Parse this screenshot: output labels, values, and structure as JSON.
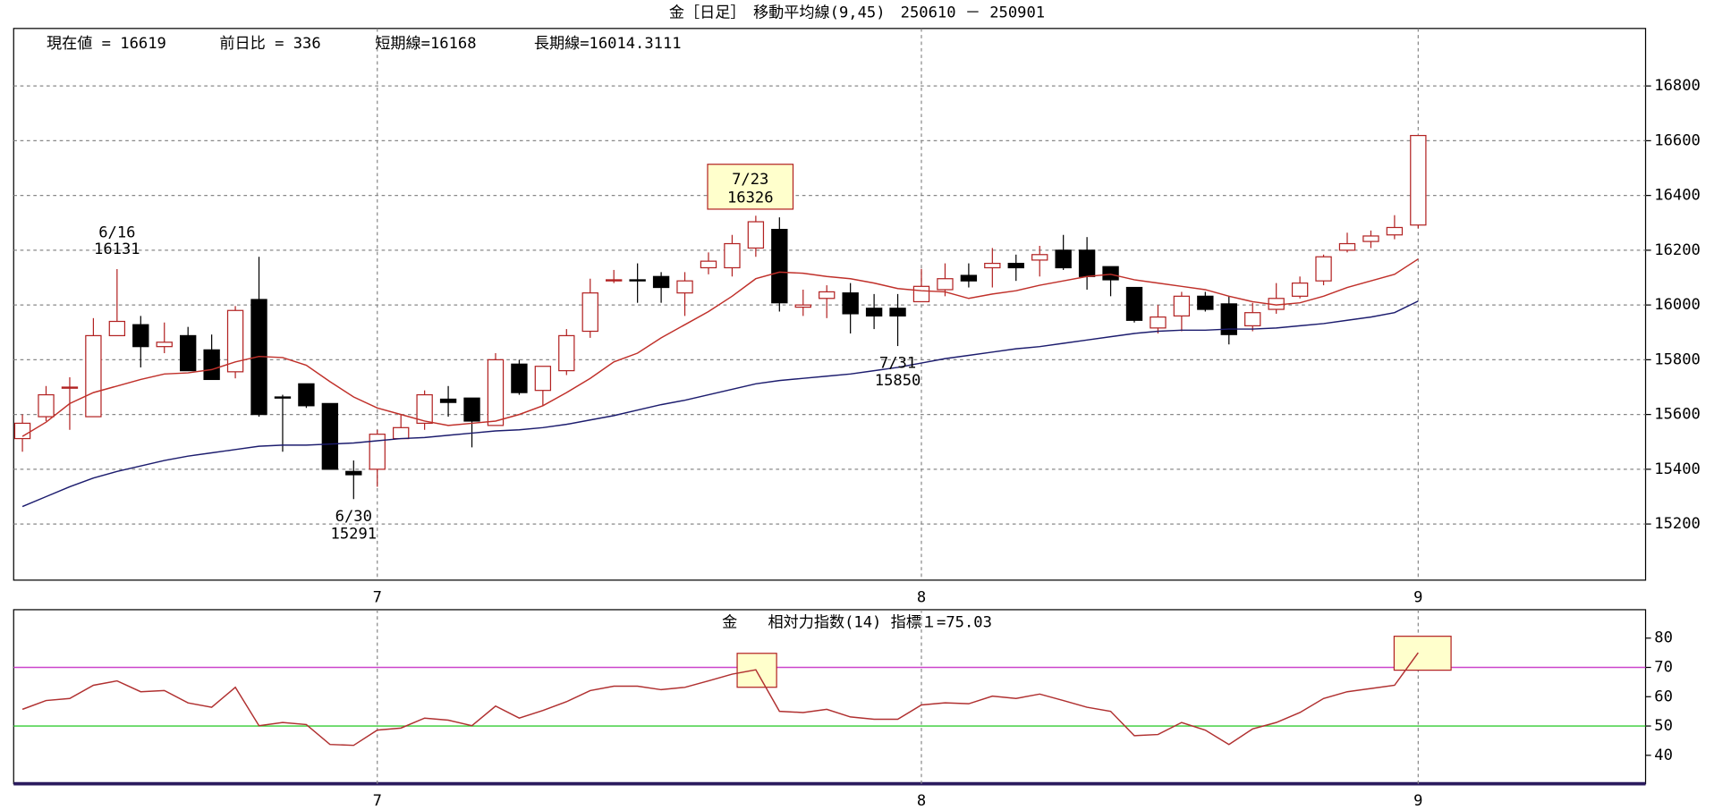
{
  "chart_data": [
    {
      "type": "candlestick",
      "title": "金［日足］　移動平均線(9,45)　250610 － 250901",
      "info": [
        "現在値 = 16619",
        "前日比 = 336",
        "短期線=16168",
        "長期線=16014.3111"
      ],
      "categories": [
        null,
        null,
        null,
        null,
        null,
        null,
        null,
        null,
        null,
        null,
        null,
        null,
        null,
        null,
        null,
        "7",
        null,
        null,
        null,
        null,
        null,
        null,
        null,
        null,
        null,
        null,
        null,
        null,
        null,
        null,
        null,
        null,
        null,
        null,
        null,
        null,
        null,
        null,
        "8",
        null,
        null,
        null,
        null,
        null,
        null,
        null,
        null,
        null,
        null,
        null,
        null,
        null,
        null,
        null,
        null,
        null,
        null,
        null,
        null,
        "9"
      ],
      "open": [
        15512,
        15592,
        15696,
        15592,
        15888,
        15928,
        15848,
        15888,
        15836,
        15756,
        16020,
        15664,
        15712,
        15640,
        15392,
        15400,
        15512,
        15568,
        15656,
        15660,
        15560,
        15784,
        15688,
        15760,
        15904,
        16088,
        16092,
        16104,
        16044,
        16136,
        16136,
        16208,
        16276,
        15992,
        16024,
        16044,
        15988,
        15988,
        16012,
        16056,
        16108,
        16136,
        16152,
        16164,
        16200,
        16200,
        16140,
        16064,
        15916,
        15960,
        16032,
        16004,
        15924,
        15984,
        16032,
        16088,
        16200,
        16232,
        16256,
        16292
      ],
      "high": [
        15600,
        15704,
        15736,
        15952,
        16131,
        15960,
        15936,
        15920,
        15892,
        15996,
        16176,
        15672,
        15712,
        15640,
        15432,
        15544,
        15600,
        15688,
        15704,
        15660,
        15824,
        15800,
        15776,
        15912,
        16096,
        16128,
        16152,
        16120,
        16120,
        16192,
        16256,
        16326,
        16320,
        16056,
        16072,
        16080,
        16040,
        16040,
        16132,
        16152,
        16152,
        16208,
        16184,
        16216,
        16256,
        16248,
        16140,
        16064,
        16000,
        16048,
        16048,
        16032,
        16008,
        16080,
        16104,
        16184,
        16264,
        16272,
        16328,
        16619
      ],
      "low": [
        15464,
        15576,
        15544,
        15592,
        15888,
        15772,
        15824,
        15760,
        15728,
        15732,
        15592,
        15464,
        15624,
        15400,
        15291,
        15336,
        15512,
        15544,
        15592,
        15480,
        15560,
        15672,
        15632,
        15744,
        15880,
        16080,
        16008,
        16008,
        15960,
        16112,
        16104,
        16176,
        15976,
        15960,
        15952,
        15896,
        15912,
        15850,
        16012,
        16032,
        16064,
        16064,
        16088,
        16104,
        16128,
        16056,
        16032,
        15936,
        15896,
        15904,
        15976,
        15856,
        15904,
        15968,
        16024,
        16072,
        16192,
        16208,
        16240,
        16280
      ],
      "close": [
        15568,
        15672,
        15700,
        15888,
        15940,
        15848,
        15864,
        15760,
        15728,
        15980,
        15600,
        15660,
        15632,
        15400,
        15380,
        15528,
        15552,
        15672,
        15644,
        15576,
        15800,
        15680,
        15776,
        15888,
        16044,
        16092,
        16088,
        16064,
        16088,
        16160,
        16224,
        16304,
        16008,
        16000,
        16048,
        15968,
        15960,
        15960,
        16068,
        16096,
        16088,
        16152,
        16136,
        16184,
        16136,
        16104,
        16092,
        15944,
        15956,
        16032,
        15984,
        15892,
        15972,
        16024,
        16080,
        16176,
        16224,
        16252,
        16283,
        16619
      ],
      "up_color": "#b22222",
      "down_color": "#000000",
      "lines": [
        {
          "color": "#c0302a",
          "values": [
            15520,
            15572,
            15640,
            15680,
            15704,
            15728,
            15748,
            15752,
            15764,
            15792,
            15812,
            15808,
            15780,
            15720,
            15664,
            15624,
            15600,
            15576,
            15560,
            15568,
            15576,
            15600,
            15632,
            15680,
            15732,
            15792,
            15824,
            15880,
            15928,
            15976,
            16032,
            16096,
            16120,
            16116,
            16104,
            16096,
            16080,
            16060,
            16052,
            16048,
            16024,
            16040,
            16052,
            16072,
            16088,
            16104,
            16112,
            16092,
            16080,
            16068,
            16056,
            16032,
            16012,
            16000,
            16008,
            16032,
            16064,
            16088,
            16112,
            16168
          ]
        },
        {
          "color": "#1c1c6e",
          "values": [
            15264,
            15300,
            15336,
            15368,
            15392,
            15412,
            15432,
            15448,
            15460,
            15472,
            15484,
            15488,
            15488,
            15492,
            15496,
            15504,
            15512,
            15516,
            15524,
            15532,
            15540,
            15544,
            15552,
            15564,
            15580,
            15596,
            15616,
            15636,
            15652,
            15672,
            15692,
            15712,
            15724,
            15732,
            15740,
            15748,
            15760,
            15772,
            15788,
            15804,
            15816,
            15828,
            15840,
            15848,
            15860,
            15872,
            15884,
            15896,
            15904,
            15908,
            15908,
            15912,
            15912,
            15916,
            15924,
            15932,
            15944,
            15956,
            15972,
            16014.3111
          ]
        }
      ],
      "annotations": [
        {
          "date": "6/16",
          "value": 16131
        },
        {
          "date": "6/30",
          "value": 15291
        },
        {
          "date": "7/23",
          "value": 16326,
          "boxed": true
        },
        {
          "date": "7/31",
          "value": 15850
        }
      ],
      "ylim": [
        14995,
        17010
      ],
      "yticks": [
        15200,
        15400,
        15600,
        15800,
        16000,
        16200,
        16400,
        16600,
        16800
      ],
      "grid": true
    },
    {
      "type": "line",
      "title": "金　　相対力指数(14) 指標１=75.03",
      "categories": [
        null,
        null,
        null,
        null,
        null,
        null,
        null,
        null,
        null,
        null,
        null,
        null,
        null,
        null,
        null,
        "7",
        null,
        null,
        null,
        null,
        null,
        null,
        null,
        null,
        null,
        null,
        null,
        null,
        null,
        null,
        null,
        null,
        null,
        null,
        null,
        null,
        null,
        null,
        "8",
        null,
        null,
        null,
        null,
        null,
        null,
        null,
        null,
        null,
        null,
        null,
        null,
        null,
        null,
        null,
        null,
        null,
        null,
        null,
        null,
        "9"
      ],
      "values": [
        55.7,
        58.7,
        59.4,
        63.9,
        65.4,
        61.7,
        62.1,
        57.9,
        56.4,
        63.2,
        50.1,
        51.2,
        50.5,
        43.7,
        43.4,
        48.6,
        49.3,
        52.7,
        52.0,
        50.1,
        56.8,
        52.7,
        55.3,
        58.3,
        62.1,
        63.6,
        63.6,
        62.4,
        63.2,
        65.4,
        67.7,
        69.2,
        55.0,
        54.6,
        55.7,
        53.1,
        52.3,
        52.3,
        57.2,
        57.9,
        57.6,
        60.2,
        59.4,
        60.9,
        58.7,
        56.4,
        55.0,
        46.7,
        47.1,
        51.2,
        48.6,
        43.7,
        49.0,
        51.2,
        54.6,
        59.4,
        61.7,
        62.8,
        63.9,
        75.03
      ],
      "color": "#b03030",
      "reference_lines": [
        {
          "value": 70,
          "color": "#cc44cc"
        },
        {
          "value": 50,
          "color": "#33cc33"
        }
      ],
      "highlight_color": "#ffffcc",
      "ylim": [
        30.3,
        89.7
      ],
      "yticks": [
        40,
        50,
        60,
        70,
        80
      ]
    }
  ]
}
